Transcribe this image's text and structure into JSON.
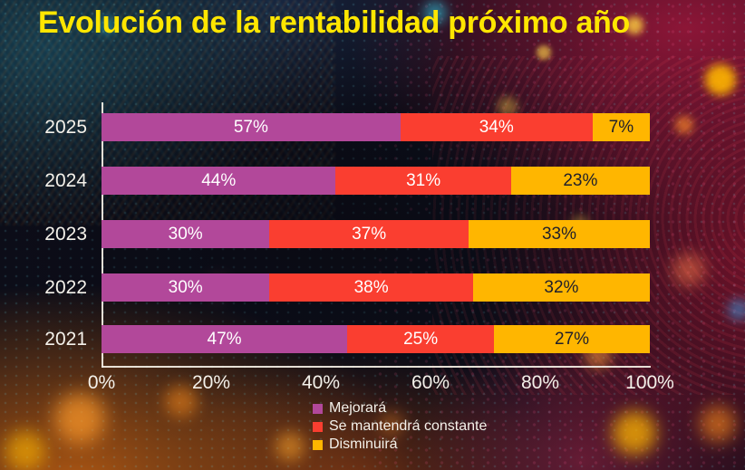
{
  "title": "Evolución de la rentabilidad próximo año",
  "colors": {
    "title_accent": "#ffe600",
    "axis": "#f5f0e6",
    "text_light": "#f4f1ea",
    "text_dark": "#1f1f2b",
    "series_purple": "#b2489a",
    "series_red": "#fa3e30",
    "series_yellow": "#ffb600"
  },
  "chart_data": {
    "type": "bar",
    "orientation": "horizontal",
    "stacked": true,
    "title": "Evolución de la rentabilidad próximo año",
    "categories": [
      "2025",
      "2024",
      "2023",
      "2022",
      "2021"
    ],
    "series": [
      {
        "name": "Mejorará",
        "color": "#b2489a",
        "label_color": "#ffffff",
        "values": [
          57,
          44,
          30,
          30,
          47
        ]
      },
      {
        "name": "Se mantendrá constante",
        "color": "#fa3e30",
        "label_color": "#ffffff",
        "values": [
          34,
          31,
          37,
          38,
          25
        ]
      },
      {
        "name": "Disminuirá",
        "color": "#ffb600",
        "label_color": "#1f1f2b",
        "values": [
          7,
          23,
          33,
          32,
          27
        ]
      }
    ],
    "value_suffix": "%",
    "x_ticks": [
      "0%",
      "20%",
      "40%",
      "60%",
      "80%",
      "100%"
    ],
    "xlim": [
      0,
      100
    ],
    "grid": false,
    "legend_position": "bottom"
  }
}
